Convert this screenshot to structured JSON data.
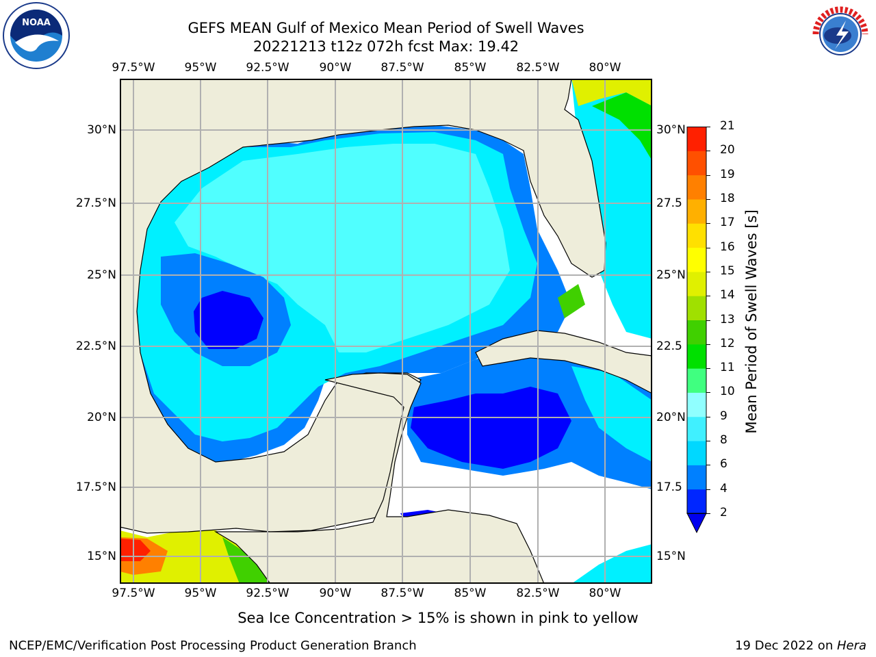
{
  "header": {
    "title_line1": "GEFS MEAN Gulf of Mexico Mean Period of Swell Waves",
    "title_line2": "20221213 t12z 072h fcst   Max: 19.42"
  },
  "logos": {
    "left": "NOAA",
    "left_ring": "NATIONAL OCEANIC AND ATMOSPHERIC ADMINISTRATION · U.S. DEPARTMENT OF COMMERCE",
    "right_ring": "NATIONAL WEATHER SERVICE"
  },
  "axes": {
    "lon_labels": [
      "97.5°W",
      "95°W",
      "92.5°W",
      "90°W",
      "87.5°W",
      "85°W",
      "82.5°W",
      "80°W"
    ],
    "lat_labels_left": [
      "30°N",
      "27.5°N",
      "25°N",
      "22.5°N",
      "20°N",
      "17.5°N",
      "15°N"
    ],
    "lat_labels_right": [
      "30°N",
      "27.5",
      "25°N",
      "22.5",
      "20°N",
      "17.5",
      "15°N"
    ]
  },
  "colorbar": {
    "label": "Mean Period of Swell Waves [s]",
    "ticks": [
      "2",
      "4",
      "6",
      "8",
      "9",
      "10",
      "11",
      "12",
      "13",
      "14",
      "15",
      "16",
      "17",
      "18",
      "19",
      "20",
      "21"
    ],
    "colors": [
      "#0026ff",
      "#0080ff",
      "#00d8ff",
      "#40f0ff",
      "#90ffff",
      "#40ff80",
      "#00e000",
      "#40d000",
      "#a0e000",
      "#e0f000",
      "#ffff00",
      "#ffe000",
      "#ffb000",
      "#ff8000",
      "#ff5000",
      "#ff2000",
      "#ff0000"
    ],
    "extend_color": "#0000ee"
  },
  "map_colors": {
    "land": "#eeedda",
    "no_data": "#ffffff",
    "grid": "#b0b0b0"
  },
  "notes": {
    "sea_ice": "Sea Ice Concentration > 15% is shown in pink to yellow"
  },
  "footer": {
    "left": "NCEP/EMC/Verification Post Processing Product Generation Branch",
    "date": "19 Dec 2022 on ",
    "host": "Hera"
  }
}
